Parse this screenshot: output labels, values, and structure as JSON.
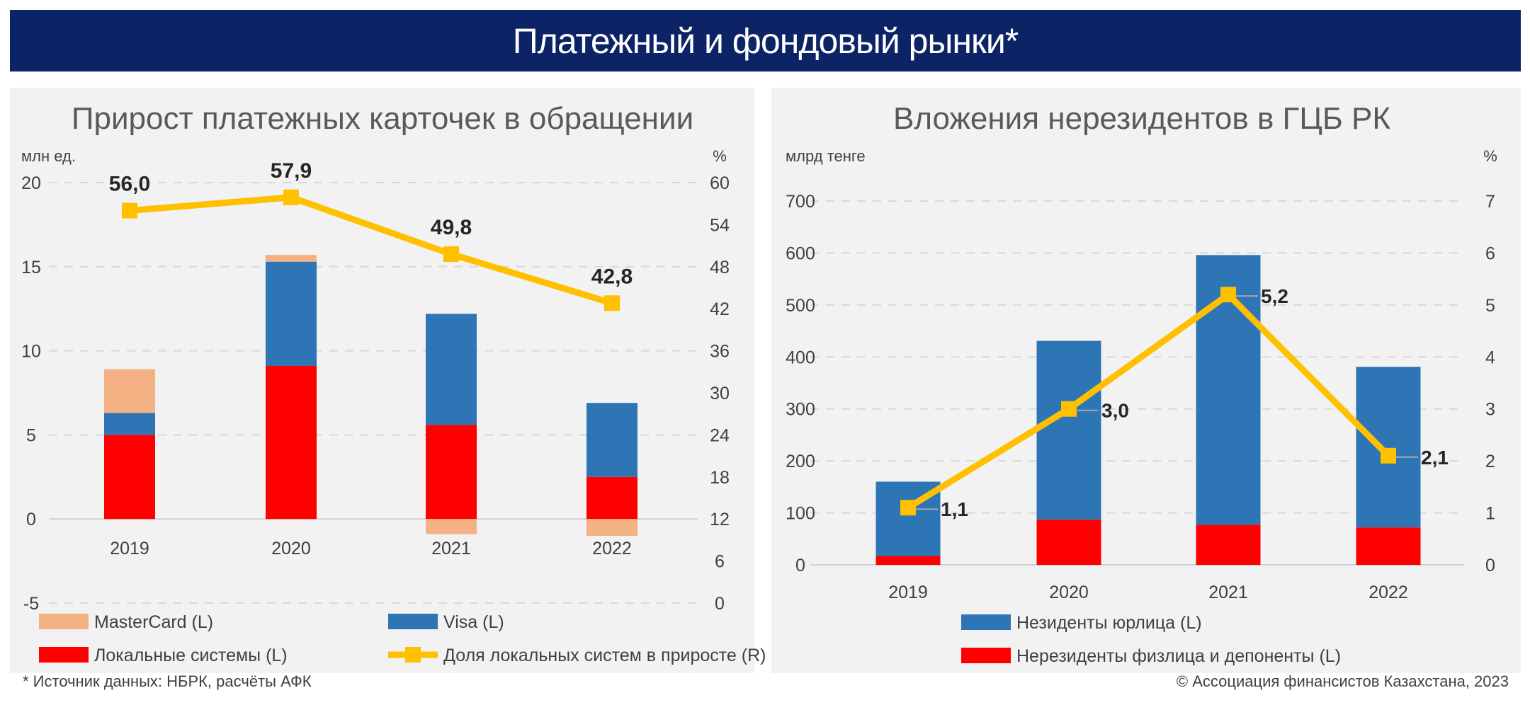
{
  "header": {
    "title": "Платежный и фондовый рынки*"
  },
  "footnote": "* Источник данных: НБРК, расчёты АФК",
  "copyright": "© Ассоциация финансистов Казахстана, 2023",
  "colors": {
    "navy": "#0c2466",
    "mastercard": "#f4b183",
    "visa": "#2e75b6",
    "local": "#ff0000",
    "line": "#ffc000",
    "panel": "#f2f2f2"
  },
  "chart_data": [
    {
      "type": "bar",
      "stacked": true,
      "title": "Прирост платежных карточек в обращении",
      "ylabel": "млн ед.",
      "y2label": "%",
      "categories": [
        "2019",
        "2020",
        "2021",
        "2022"
      ],
      "ylim": [
        -5,
        20
      ],
      "yticks": [
        "20",
        "15",
        "10",
        "5",
        "0",
        "-5"
      ],
      "y2lim": [
        0,
        60
      ],
      "y2ticks": [
        "60",
        "54",
        "48",
        "42",
        "36",
        "30",
        "24",
        "18",
        "12",
        "6",
        "0"
      ],
      "grid": true,
      "legend_position": "bottom",
      "series": [
        {
          "name": "Локальные системы (L)",
          "axis": "left",
          "color": "#ff0000",
          "values": [
            5.0,
            9.1,
            5.6,
            2.5
          ]
        },
        {
          "name": "Visa  (L)",
          "axis": "left",
          "color": "#2e75b6",
          "values": [
            1.3,
            6.2,
            6.6,
            4.4
          ]
        },
        {
          "name": "MasterCard (L)",
          "axis": "left",
          "color": "#f4b183",
          "values": [
            2.6,
            0.4,
            -0.9,
            -1.0
          ]
        },
        {
          "name": "Доля локальных систем в приросте (R)",
          "axis": "right",
          "type": "line",
          "color": "#ffc000",
          "values": [
            56.0,
            57.9,
            49.8,
            42.8
          ],
          "labels": [
            "56,0",
            "57,9",
            "49,8",
            "42,8"
          ]
        }
      ]
    },
    {
      "type": "bar",
      "stacked": true,
      "title": "Вложения нерезидентов в ГЦБ РК",
      "ylabel": "млрд тенге",
      "y2label": "%",
      "categories": [
        "2019",
        "2020",
        "2021",
        "2022"
      ],
      "ylim": [
        0,
        700
      ],
      "yticks": [
        "700",
        "600",
        "500",
        "400",
        "300",
        "200",
        "100",
        "0"
      ],
      "y2lim": [
        0,
        7
      ],
      "y2ticks": [
        "7",
        "6",
        "5",
        "4",
        "3",
        "2",
        "1",
        "0"
      ],
      "grid": true,
      "legend_position": "bottom",
      "series": [
        {
          "name": "Нерезиденты физлица и депоненты (L)",
          "axis": "left",
          "color": "#ff0000",
          "values": [
            17,
            87,
            77,
            72
          ]
        },
        {
          "name": "Незиденты юрлица (L)",
          "axis": "left",
          "color": "#2e75b6",
          "values": [
            143,
            344,
            519,
            309
          ]
        },
        {
          "name": "",
          "axis": "right",
          "type": "line",
          "color": "#ffc000",
          "values": [
            1.1,
            3.0,
            5.2,
            2.1
          ],
          "labels": [
            "1,1",
            "3,0",
            "5,2",
            "2,1"
          ]
        }
      ]
    }
  ]
}
